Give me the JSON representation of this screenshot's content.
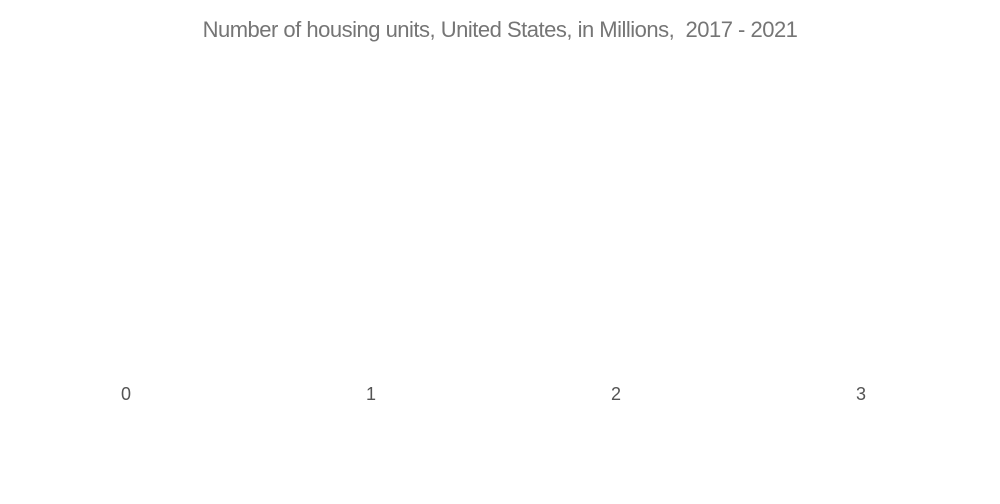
{
  "colors": {
    "background": "#ffffff",
    "title_text": "#757575",
    "tick_text": "#545454"
  },
  "chart_data": {
    "type": "bar",
    "orientation": "horizontal",
    "title": "Number of housing units, United States, in Millions,  2017 - 2021",
    "xlabel": "",
    "ylabel": "",
    "x_tick_labels": [
      "0",
      "1",
      "2",
      "3"
    ],
    "xlim": [
      0,
      3
    ],
    "categories": [],
    "series": [],
    "grid": false,
    "legend": false
  }
}
